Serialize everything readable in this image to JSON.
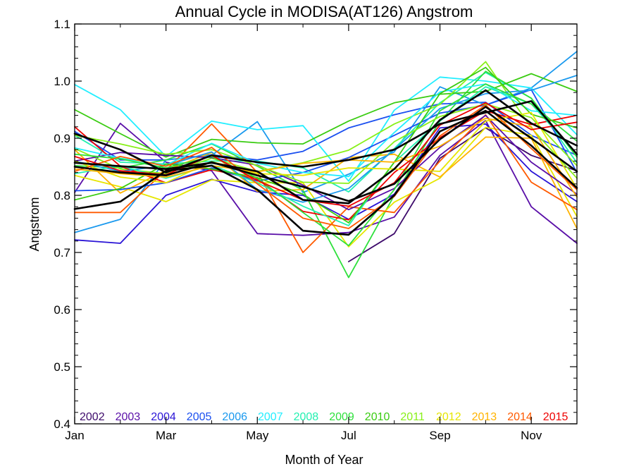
{
  "chart_data": {
    "type": "line",
    "title": "Annual Cycle in MODISA(AT126) Angstrom",
    "xlabel": "Month of Year",
    "ylabel": "Angstrom",
    "xlim": [
      1,
      12
    ],
    "ylim": [
      0.4,
      1.1
    ],
    "x_ticks": [
      {
        "value": 1,
        "label": "Jan"
      },
      {
        "value": 3,
        "label": "Mar"
      },
      {
        "value": 5,
        "label": "May"
      },
      {
        "value": 7,
        "label": "Jul"
      },
      {
        "value": 9,
        "label": "Sep"
      },
      {
        "value": 11,
        "label": "Nov"
      }
    ],
    "y_ticks": [
      0.4,
      0.5,
      0.6,
      0.7,
      0.8,
      0.9,
      1.0,
      1.1
    ],
    "y_tick_labels": [
      "0.4",
      "0.5",
      "0.6",
      "0.7",
      "0.8",
      "0.9",
      "1.0",
      "1.1"
    ],
    "grid": false,
    "legend_placement": "bottom",
    "x": [
      1,
      2,
      3,
      4,
      5,
      6,
      7,
      8,
      9,
      10,
      11,
      12
    ],
    "series": [
      {
        "name": "2002",
        "color": "#3d0a6b",
        "values": [
          null,
          null,
          null,
          null,
          null,
          null,
          0.684,
          0.733,
          0.865,
          0.918,
          0.87,
          0.843
        ]
      },
      {
        "name": "2003",
        "color": "#5a0fa8",
        "values": [
          0.805,
          0.926,
          0.858,
          0.843,
          0.733,
          0.73,
          0.735,
          0.762,
          0.87,
          0.931,
          0.78,
          0.716
        ]
      },
      {
        "name": "2004",
        "color": "#2a14d6",
        "values": [
          0.722,
          0.716,
          0.8,
          0.828,
          0.806,
          0.8,
          0.758,
          0.802,
          0.918,
          0.925,
          0.842,
          0.789
        ]
      },
      {
        "name": "2005",
        "color": "#1a4ff0",
        "values": [
          0.912,
          0.862,
          0.862,
          0.871,
          0.862,
          0.877,
          0.918,
          0.941,
          0.96,
          0.963,
          0.905,
          0.87
        ]
      },
      {
        "name": "2006",
        "color": "#1a99ee",
        "values": [
          0.735,
          0.758,
          0.862,
          0.87,
          0.929,
          0.805,
          0.837,
          0.876,
          0.99,
          0.958,
          0.988,
          1.052
        ]
      },
      {
        "name": "2007",
        "color": "#22eeff",
        "values": [
          0.994,
          0.95,
          0.868,
          0.93,
          0.915,
          0.922,
          0.825,
          0.949,
          1.007,
          1.0,
          0.988,
          0.906
        ]
      },
      {
        "name": "2008",
        "color": "#22f0b0",
        "values": [
          0.905,
          0.858,
          0.855,
          0.86,
          0.86,
          0.848,
          0.806,
          0.882,
          0.962,
          1.015,
          0.97,
          0.857
        ]
      },
      {
        "name": "2009",
        "color": "#2ee03c",
        "values": [
          0.852,
          0.848,
          0.862,
          0.89,
          0.851,
          0.809,
          0.656,
          0.8,
          0.93,
          1.017,
          0.97,
          0.867
        ]
      },
      {
        "name": "2010",
        "color": "#3acc12",
        "values": [
          0.95,
          0.908,
          0.867,
          0.898,
          0.892,
          0.89,
          0.93,
          0.962,
          0.977,
          0.982,
          1.013,
          0.982
        ]
      },
      {
        "name": "2011",
        "color": "#88f018",
        "values": [
          0.882,
          0.846,
          0.838,
          0.865,
          0.842,
          0.857,
          0.879,
          0.925,
          0.959,
          1.034,
          0.918,
          0.83
        ]
      },
      {
        "name": "2012",
        "color": "#e6e600",
        "values": [
          0.835,
          0.815,
          0.789,
          0.827,
          0.822,
          0.822,
          0.71,
          0.788,
          0.83,
          0.919,
          0.905,
          0.763
        ]
      },
      {
        "name": "2013",
        "color": "#ffb300",
        "values": [
          0.88,
          0.804,
          0.844,
          0.875,
          0.807,
          0.81,
          0.866,
          0.872,
          0.832,
          0.902,
          0.9,
          0.742
        ]
      },
      {
        "name": "2014",
        "color": "#ff5a00",
        "values": [
          0.77,
          0.77,
          0.844,
          0.925,
          0.84,
          0.7,
          0.78,
          0.77,
          0.86,
          0.941,
          0.823,
          0.775
        ]
      },
      {
        "name": "2015",
        "color": "#ee0000",
        "values": [
          0.92,
          0.851,
          0.822,
          0.845,
          0.828,
          0.772,
          0.757,
          0.84,
          0.901,
          0.948,
          0.924,
          0.94
        ]
      },
      {
        "name": "",
        "color": "#5a0fa8",
        "values": [
          0.86,
          0.875,
          0.87,
          0.866,
          0.853,
          0.818,
          0.775,
          0.812,
          0.884,
          0.94,
          0.858,
          0.802
        ]
      },
      {
        "name": "",
        "color": "#1a4ff0",
        "values": [
          0.808,
          0.81,
          0.822,
          0.848,
          0.825,
          0.84,
          0.866,
          0.905,
          0.944,
          0.958,
          0.985,
          0.84
        ]
      },
      {
        "name": "",
        "color": "#1a99ee",
        "values": [
          0.86,
          0.842,
          0.852,
          0.876,
          0.81,
          0.788,
          0.812,
          0.88,
          0.952,
          0.978,
          0.984,
          1.01
        ]
      },
      {
        "name": "",
        "color": "#22eeff",
        "values": [
          0.883,
          0.865,
          0.853,
          0.891,
          0.856,
          0.84,
          0.833,
          0.91,
          0.981,
          0.995,
          0.948,
          0.94
        ]
      },
      {
        "name": "",
        "color": "#22f0b0",
        "values": [
          0.838,
          0.852,
          0.83,
          0.853,
          0.822,
          0.781,
          0.747,
          0.858,
          0.93,
          0.99,
          0.96,
          0.872
        ]
      },
      {
        "name": "",
        "color": "#2ee03c",
        "values": [
          0.872,
          0.864,
          0.848,
          0.868,
          0.83,
          0.77,
          0.712,
          0.81,
          0.948,
          0.995,
          0.96,
          0.895
        ]
      },
      {
        "name": "",
        "color": "#3acc12",
        "values": [
          0.792,
          0.812,
          0.855,
          0.846,
          0.831,
          0.802,
          0.752,
          0.858,
          0.978,
          1.024,
          0.942,
          0.918
        ]
      },
      {
        "name": "",
        "color": "#88f018",
        "values": [
          0.905,
          0.89,
          0.872,
          0.88,
          0.852,
          0.823,
          0.821,
          0.894,
          0.938,
          0.96,
          0.936,
          0.852
        ]
      },
      {
        "name": "",
        "color": "#e6e600",
        "values": [
          0.86,
          0.832,
          0.822,
          0.859,
          0.838,
          0.835,
          0.848,
          0.846,
          0.842,
          0.93,
          0.945,
          0.812
        ]
      },
      {
        "name": "",
        "color": "#ffb300",
        "values": [
          0.846,
          0.838,
          0.832,
          0.852,
          0.841,
          0.856,
          0.862,
          0.858,
          0.886,
          0.935,
          0.92,
          0.797
        ]
      },
      {
        "name": "",
        "color": "#ff5a00",
        "values": [
          0.842,
          0.868,
          0.851,
          0.884,
          0.82,
          0.76,
          0.742,
          0.798,
          0.904,
          0.958,
          0.882,
          0.81
        ]
      },
      {
        "name": "",
        "color": "#ee0000",
        "values": [
          0.868,
          0.843,
          0.836,
          0.87,
          0.826,
          0.792,
          0.781,
          0.822,
          0.923,
          0.962,
          0.915,
          0.928
        ]
      },
      {
        "name": "",
        "color": "#000000",
        "values": [
          0.857,
          0.851,
          0.846,
          0.857,
          0.842,
          0.792,
          0.786,
          0.846,
          0.932,
          0.984,
          0.926,
          0.887
        ]
      },
      {
        "name": "",
        "color": "#000000",
        "values": [
          0.776,
          0.789,
          0.843,
          0.852,
          0.81,
          0.738,
          0.731,
          0.8,
          0.912,
          0.948,
          0.887,
          0.813
        ]
      },
      {
        "name": "",
        "color": "#000000",
        "values": [
          0.908,
          0.88,
          0.84,
          0.87,
          0.858,
          0.85,
          0.862,
          0.88,
          0.925,
          0.945,
          0.965,
          0.872
        ]
      },
      {
        "name": "",
        "color": "#000000",
        "values": [
          0.85,
          0.84,
          0.835,
          0.858,
          0.835,
          0.815,
          0.79,
          0.82,
          0.898,
          0.955,
          0.9,
          0.842
        ]
      }
    ]
  }
}
